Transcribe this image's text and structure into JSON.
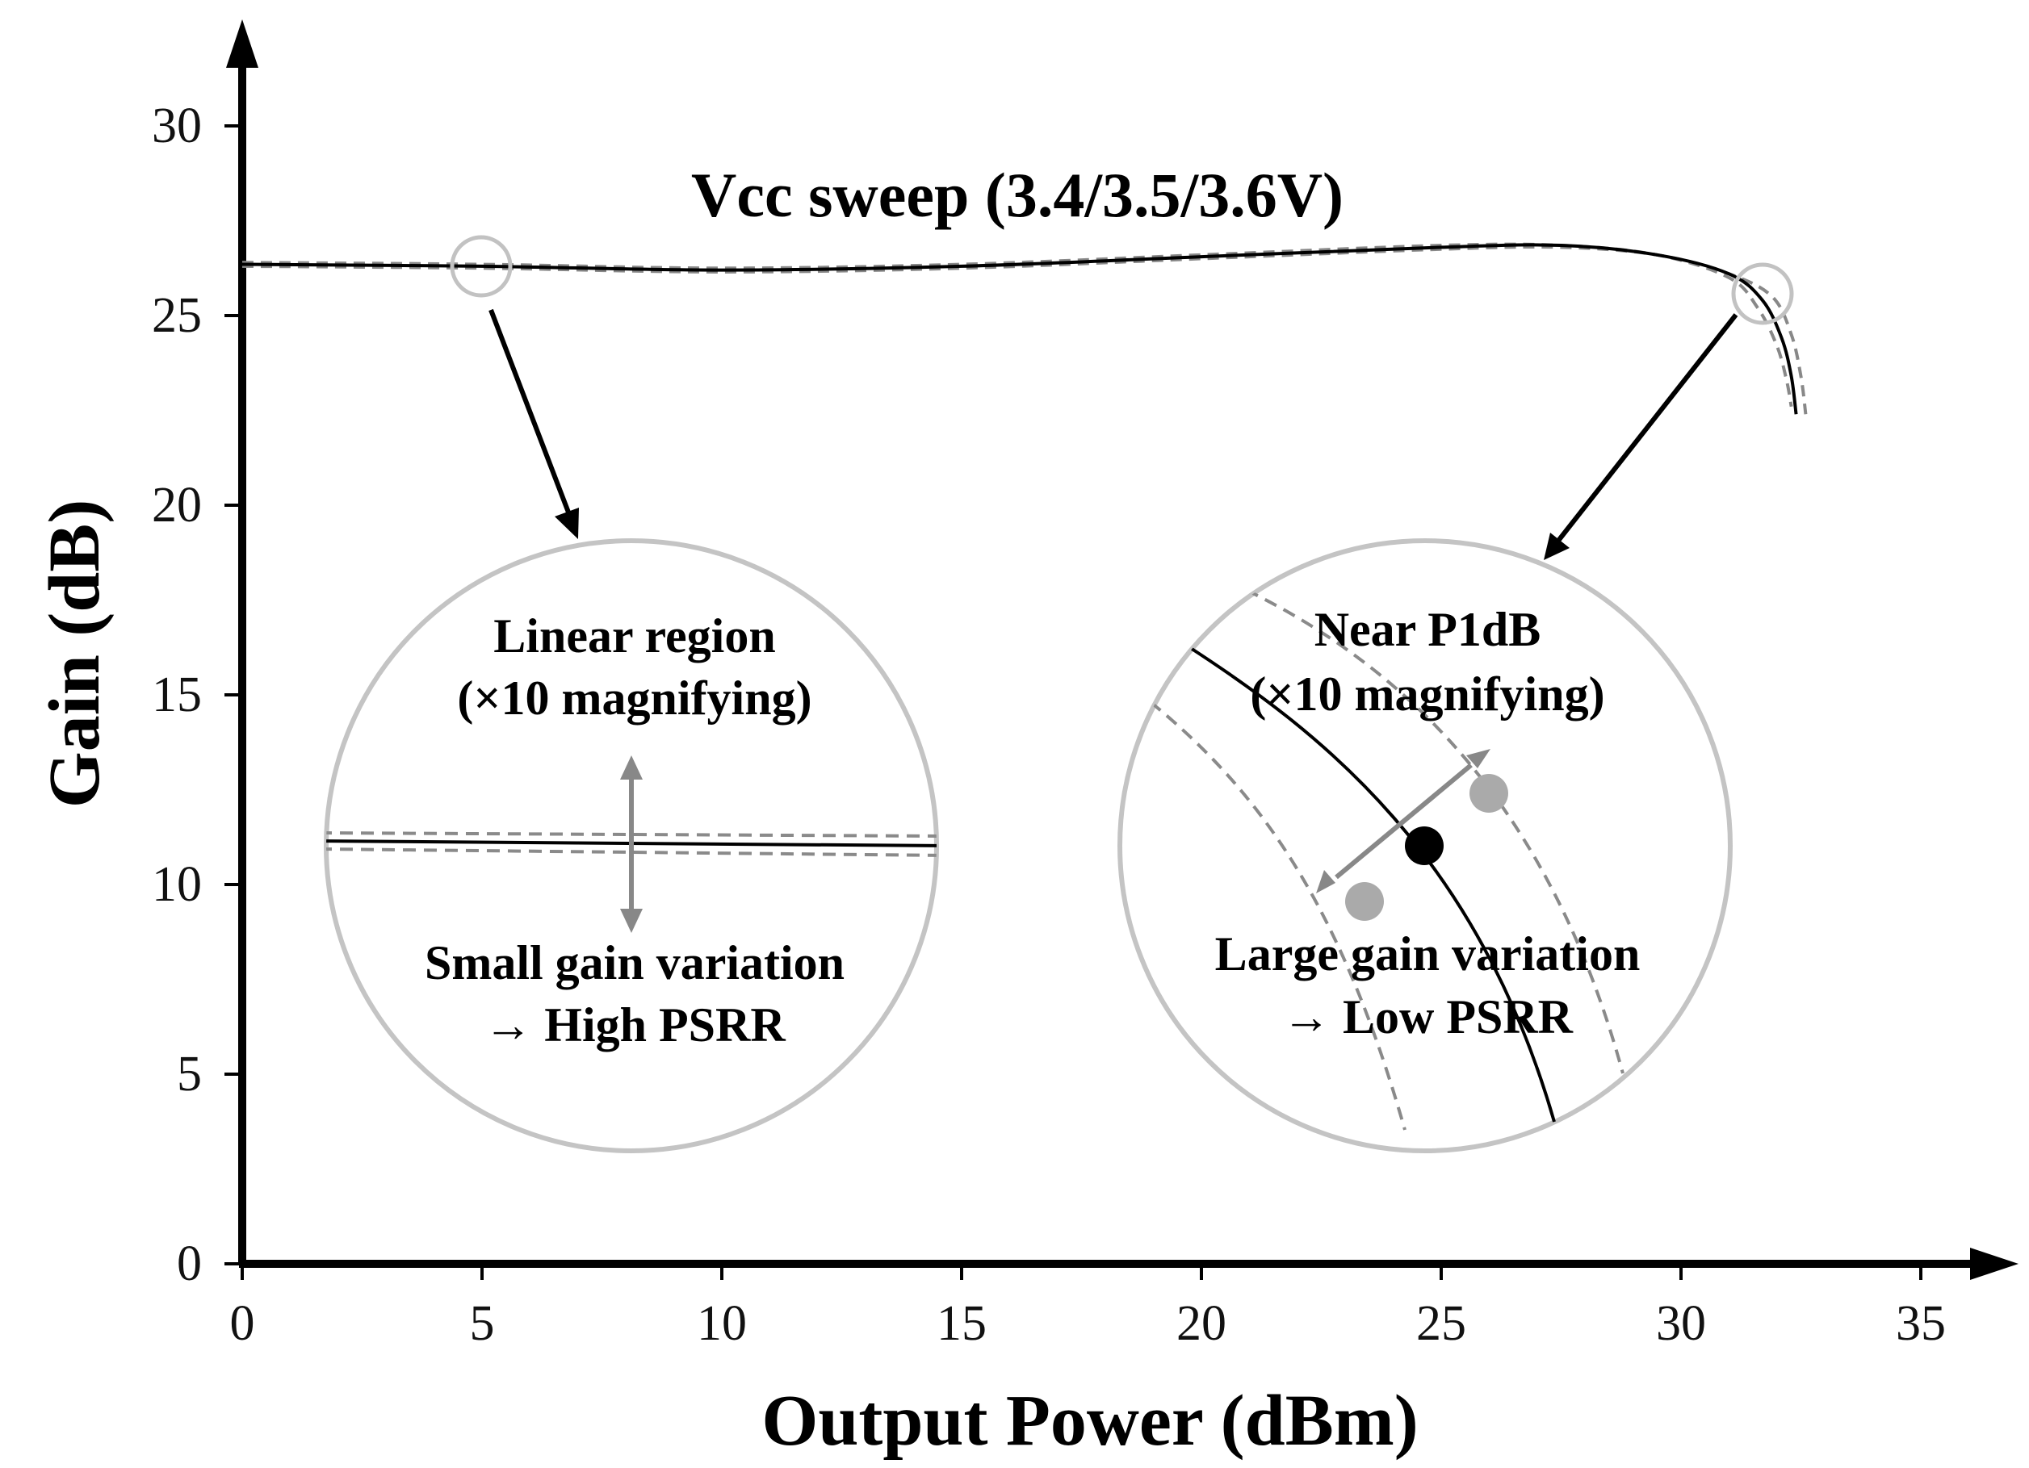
{
  "chart_data": {
    "type": "line",
    "title": "Vcc sweep (3.4/3.5/3.6V)",
    "xlabel": "Output Power (dBm)",
    "ylabel": "Gain (dB)",
    "xlim": [
      0,
      36
    ],
    "ylim": [
      0,
      31
    ],
    "xticks": [
      0,
      5,
      10,
      15,
      20,
      25,
      30,
      35
    ],
    "yticks": [
      0,
      5,
      10,
      15,
      20,
      25,
      30
    ],
    "grid": false,
    "series": [
      {
        "name": "3.4V",
        "style": "dashed",
        "color": "#888888",
        "x": [
          0,
          5,
          10,
          15,
          20,
          25,
          27.5,
          29.5,
          31,
          31.6,
          32.0,
          32.2,
          32.3
        ],
        "y": [
          26.4,
          26.35,
          26.25,
          26.35,
          26.6,
          26.85,
          26.85,
          26.6,
          26.0,
          25.2,
          24.2,
          23.3,
          22.6
        ]
      },
      {
        "name": "3.5V",
        "style": "solid",
        "color": "#000000",
        "x": [
          0,
          5,
          10,
          15,
          20,
          25,
          27.5,
          29.5,
          31,
          31.7,
          32.1,
          32.3,
          32.4
        ],
        "y": [
          26.35,
          26.3,
          26.2,
          26.3,
          26.55,
          26.8,
          26.85,
          26.6,
          26.1,
          25.4,
          24.4,
          23.4,
          22.4
        ]
      },
      {
        "name": "3.6V",
        "style": "dashed",
        "color": "#888888",
        "x": [
          0,
          5,
          10,
          15,
          20,
          25,
          27.5,
          29.5,
          31,
          31.9,
          32.3,
          32.5,
          32.6
        ],
        "y": [
          26.3,
          26.25,
          26.15,
          26.25,
          26.5,
          26.75,
          26.8,
          26.6,
          26.1,
          25.5,
          24.5,
          23.4,
          22.4
        ]
      }
    ],
    "annotations": [
      {
        "title": "Linear region",
        "subtitle": "(×10 magnifying)",
        "caption": "Small gain variation",
        "caption2": "→ High PSRR",
        "point_x": 5,
        "point_y": 26.3
      },
      {
        "title": "Near P1dB",
        "subtitle": "(×10 magnifying)",
        "caption": "Large gain variation",
        "caption2": "→ Low PSRR",
        "point_x": 32,
        "point_y": 25.6
      }
    ]
  }
}
